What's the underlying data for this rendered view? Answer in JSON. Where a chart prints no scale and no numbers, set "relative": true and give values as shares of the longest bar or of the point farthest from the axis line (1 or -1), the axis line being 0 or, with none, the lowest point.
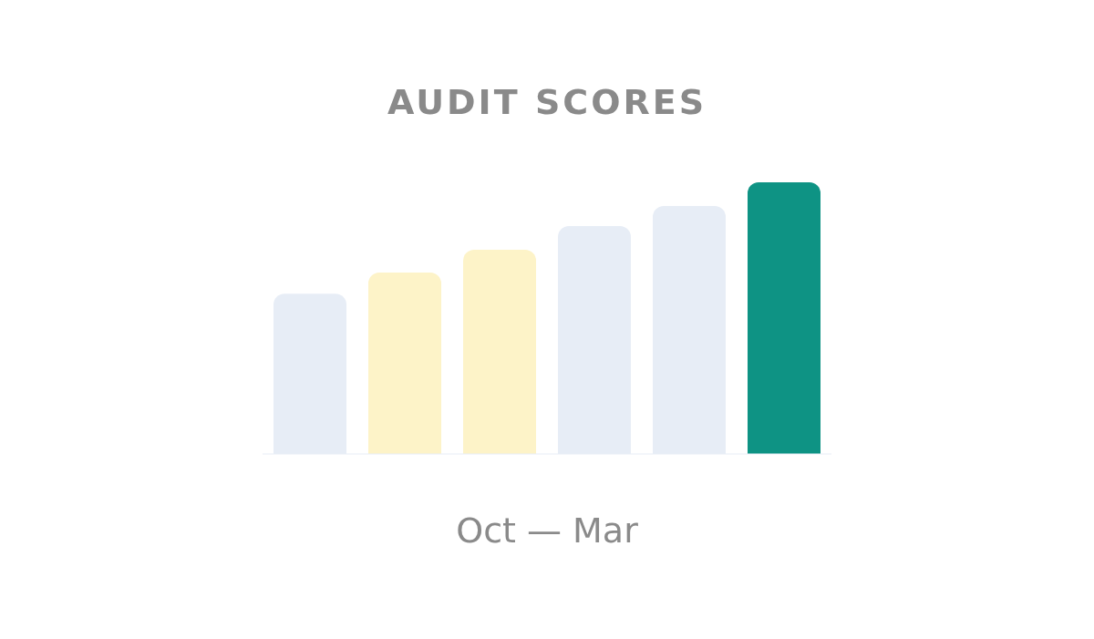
{
  "chart_data": {
    "type": "bar",
    "title": "AUDIT SCORES",
    "xlabel": "Oct — Mar",
    "relative": true,
    "categories": [
      null,
      null,
      null,
      null,
      null,
      null
    ],
    "values": [
      0.59,
      0.668,
      0.752,
      0.839,
      0.913,
      1
    ],
    "colors": [
      "#e7edf6",
      "#fdf3c8",
      "#fdf3c8",
      "#e7edf6",
      "#e7edf6",
      "#0e9384"
    ],
    "grid": false,
    "legend": false
  }
}
